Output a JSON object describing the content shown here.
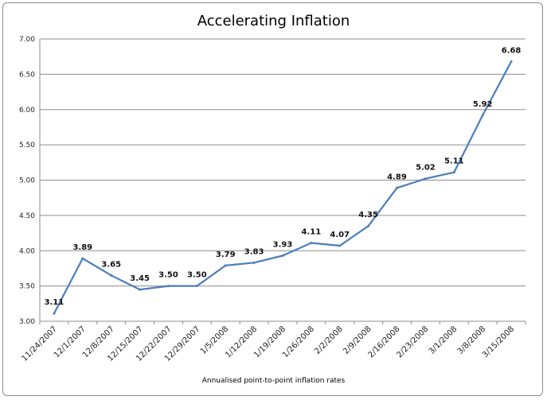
{
  "chart_data": {
    "type": "line",
    "title": "Accelerating Inflation",
    "xlabel": "Annualised point-to-point inflation rates",
    "ylabel": "",
    "ylim": [
      3.0,
      7.0
    ],
    "yticks": [
      "3.00",
      "3.50",
      "4.00",
      "4.50",
      "5.00",
      "5.50",
      "6.00",
      "6.50",
      "7.00"
    ],
    "grid": true,
    "legend": "none",
    "categories": [
      "11/24/2007",
      "12/1/2007",
      "12/8/2007",
      "12/15/2007",
      "12/22/2007",
      "12/29/2007",
      "1/5/2008",
      "1/12/2008",
      "1/19/2008",
      "1/26/2008",
      "2/2/2008",
      "2/9/2008",
      "2/16/2008",
      "2/23/2008",
      "3/1/2008",
      "3/8/2008",
      "3/15/2008"
    ],
    "series": [
      {
        "values": [
          3.11,
          3.89,
          3.65,
          3.45,
          3.5,
          3.5,
          3.79,
          3.83,
          3.93,
          4.11,
          4.07,
          4.35,
          4.89,
          5.02,
          5.11,
          5.92,
          6.68
        ],
        "labels": [
          "3.11",
          "3.89",
          "3.65",
          "3.45",
          "3.50",
          "3.50",
          "3.79",
          "3.83",
          "3.93",
          "4.11",
          "4.07",
          "4.35",
          "4.89",
          "5.02",
          "5.11",
          "5.92",
          "6.68"
        ],
        "color": "#4a7ebb"
      }
    ],
    "colors": {
      "line": "#4a7ebb",
      "grid": "#8c8c8c",
      "axis": "#8c8c8c"
    }
  }
}
